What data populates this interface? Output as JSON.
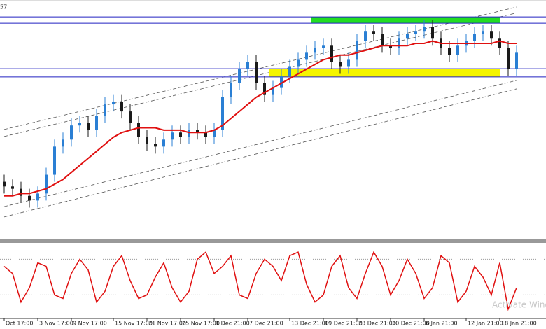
{
  "header_text": "57",
  "watermark": "Activate Windows",
  "chart_data": [
    {
      "type": "candlestick",
      "ylim": [
        0,
        100
      ],
      "up_color": "#2a7fd4",
      "down_color": "#1a1a1a",
      "categories": [
        "Oct 17:00",
        null,
        null,
        null,
        "3 Nov 17:00",
        null,
        null,
        null,
        "9 Nov 17:00",
        null,
        null,
        null,
        null,
        "15 Nov 17:00",
        null,
        null,
        null,
        "21 Nov 17:00",
        null,
        null,
        null,
        "25 Nov 17:00",
        null,
        null,
        null,
        "1 Dec 21:00",
        null,
        null,
        null,
        "7 Dec 21:00",
        null,
        null,
        null,
        null,
        "13 Dec 21:00",
        null,
        null,
        null,
        "19 Dec 21:00",
        null,
        null,
        null,
        "23 Dec 21:00",
        null,
        null,
        null,
        "30 Dec 21:00",
        null,
        null,
        null,
        "6 Jan 21:00",
        null,
        null,
        null,
        null,
        "12 Jan 21:00",
        null,
        null,
        null,
        "18 Jan 21:00",
        null,
        null
      ],
      "open": [
        24,
        22,
        21,
        18,
        16,
        19,
        27,
        39,
        42,
        48,
        49,
        46,
        52,
        57,
        58,
        54,
        49,
        43,
        40,
        39,
        42,
        45,
        43,
        46,
        45,
        43,
        46,
        60,
        66,
        72,
        75,
        66,
        61,
        64,
        69,
        73,
        76,
        79,
        81,
        82,
        75,
        73,
        76,
        84,
        88,
        87,
        82,
        81,
        85,
        87,
        88,
        90,
        85,
        81,
        78,
        82,
        84,
        87,
        88,
        85,
        81,
        72
      ],
      "high": [
        27,
        25,
        24,
        21,
        22,
        30,
        42,
        45,
        51,
        52,
        52,
        55,
        60,
        61,
        61,
        57,
        52,
        46,
        43,
        45,
        48,
        48,
        49,
        49,
        48,
        49,
        63,
        69,
        75,
        78,
        78,
        69,
        67,
        72,
        76,
        79,
        82,
        84,
        85,
        85,
        78,
        79,
        87,
        91,
        91,
        90,
        85,
        88,
        90,
        91,
        93,
        93,
        88,
        84,
        85,
        87,
        90,
        91,
        91,
        88,
        84,
        82
      ],
      "low": [
        19,
        18,
        15,
        13,
        13,
        16,
        24,
        36,
        39,
        45,
        43,
        43,
        49,
        54,
        51,
        46,
        40,
        37,
        36,
        36,
        39,
        40,
        40,
        42,
        40,
        40,
        43,
        57,
        63,
        69,
        63,
        58,
        58,
        61,
        66,
        70,
        73,
        76,
        78,
        72,
        70,
        70,
        73,
        81,
        84,
        79,
        78,
        78,
        82,
        84,
        85,
        82,
        78,
        75,
        75,
        79,
        81,
        84,
        82,
        78,
        69,
        69
      ],
      "close": [
        22,
        21,
        18,
        16,
        19,
        27,
        39,
        42,
        48,
        49,
        46,
        52,
        57,
        58,
        54,
        49,
        43,
        40,
        39,
        42,
        45,
        43,
        46,
        45,
        43,
        46,
        60,
        66,
        72,
        75,
        66,
        61,
        64,
        69,
        73,
        76,
        79,
        81,
        82,
        75,
        73,
        76,
        84,
        88,
        87,
        82,
        81,
        85,
        87,
        88,
        90,
        85,
        81,
        78,
        82,
        84,
        87,
        88,
        85,
        81,
        72,
        79
      ],
      "ma": {
        "color": "#e01010",
        "values": [
          18,
          18,
          19,
          19,
          20,
          21,
          23,
          25,
          28,
          31,
          34,
          37,
          40,
          43,
          45,
          46,
          47,
          47,
          47,
          46,
          46,
          46,
          45,
          45,
          45,
          46,
          48,
          51,
          54,
          57,
          60,
          62,
          64,
          66,
          68,
          70,
          72,
          74,
          76,
          77,
          78,
          78,
          79,
          80,
          81,
          82,
          82,
          82,
          82,
          83,
          83,
          84,
          83,
          83,
          83,
          83,
          83,
          83,
          83,
          84,
          83,
          83
        ]
      },
      "levels": {
        "color": "#2020c0",
        "values": [
          94.3,
          91.6,
          72.2,
          68.7
        ]
      },
      "zones": [
        {
          "color": "#22dd22",
          "range": [
            91.6,
            94.3
          ],
          "span": [
            37,
            59
          ]
        },
        {
          "color": "#f5f500",
          "range": [
            68.7,
            72.2
          ],
          "span": [
            32,
            59
          ]
        }
      ],
      "channels": {
        "color": "#555555",
        "lines": [
          [
            43.3,
            96
          ],
          [
            46.3,
            98.5
          ],
          [
            13.4,
            67.2
          ],
          [
            9,
            63.6
          ]
        ]
      }
    },
    {
      "type": "line",
      "ylim": [
        0,
        100
      ],
      "color": "#e01010",
      "levels": [
        80,
        30
      ],
      "values": [
        70,
        60,
        20,
        40,
        75,
        70,
        30,
        25,
        60,
        80,
        65,
        20,
        35,
        70,
        85,
        50,
        25,
        30,
        55,
        75,
        40,
        20,
        35,
        80,
        90,
        60,
        70,
        85,
        30,
        25,
        60,
        80,
        70,
        50,
        85,
        90,
        45,
        20,
        30,
        70,
        85,
        40,
        25,
        60,
        90,
        70,
        30,
        50,
        80,
        60,
        25,
        40,
        85,
        75,
        20,
        35,
        70,
        55,
        30,
        75,
        10,
        40
      ]
    }
  ]
}
